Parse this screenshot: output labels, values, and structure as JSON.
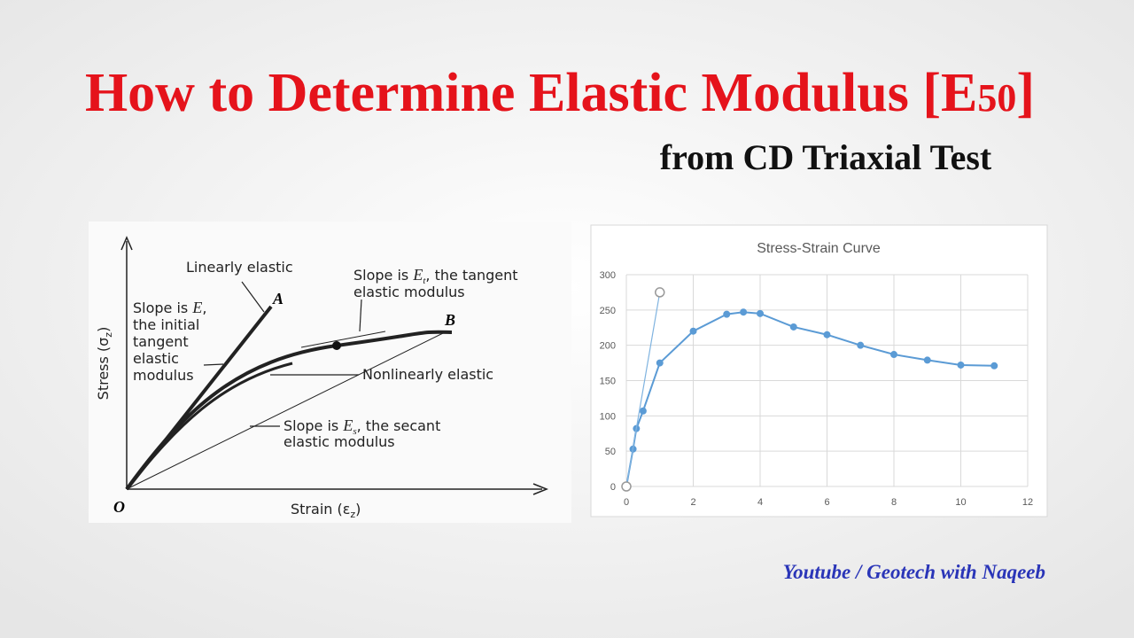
{
  "header": {
    "title": {
      "main": "How to Determine Elastic Modulus [E",
      "subscript": "50",
      "close": "]"
    },
    "subtitle": "from CD Triaxial Test"
  },
  "diagram": {
    "y_axis_label": {
      "text": "Stress (σ",
      "sub": "z",
      "close": ")"
    },
    "x_axis_label": {
      "text": "Strain (ε",
      "sub": "z",
      "close": ")"
    },
    "origin": "O",
    "point_a": "A",
    "point_b": "B",
    "linear": "Linearly elastic",
    "initial": {
      "before": "Slope is ",
      "symbol": "E",
      "after": ",",
      "lines": [
        "the initial",
        "tangent",
        "elastic",
        "modulus"
      ]
    },
    "tangent": {
      "before": "Slope is ",
      "symbol": "E",
      "sub": "t",
      "after": ", the tangent",
      "line2": "elastic modulus"
    },
    "nonlinear": "Nonlinearly elastic",
    "secant": {
      "before": "Slope is ",
      "symbol": "E",
      "sub": "s",
      "after": ", the secant",
      "line2": "elastic modulus"
    }
  },
  "chart_data": {
    "type": "line",
    "title": "Stress-Strain Curve",
    "series": [
      {
        "color": "#5b9bd5",
        "marker": "filled",
        "x": [
          0,
          0.2,
          0.3,
          0.5,
          1,
          2,
          3,
          3.5,
          4,
          5,
          6,
          7,
          8,
          9,
          10,
          11
        ],
        "values": [
          0,
          53,
          82,
          107,
          175,
          220,
          244,
          247,
          245,
          226,
          215,
          200,
          187,
          179,
          172,
          171
        ]
      },
      {
        "color": "#7fb3e0",
        "marker": "open",
        "x": [
          0,
          1
        ],
        "values": [
          0,
          275
        ]
      }
    ],
    "xlim": [
      0,
      12
    ],
    "xticks": [
      0,
      2,
      4,
      6,
      8,
      10,
      12
    ],
    "ylim": [
      0,
      300
    ],
    "yticks": [
      0,
      50,
      100,
      150,
      200,
      250,
      300
    ],
    "grid": true
  },
  "footer": {
    "credit": "Youtube / Geotech with Naqeeb"
  }
}
